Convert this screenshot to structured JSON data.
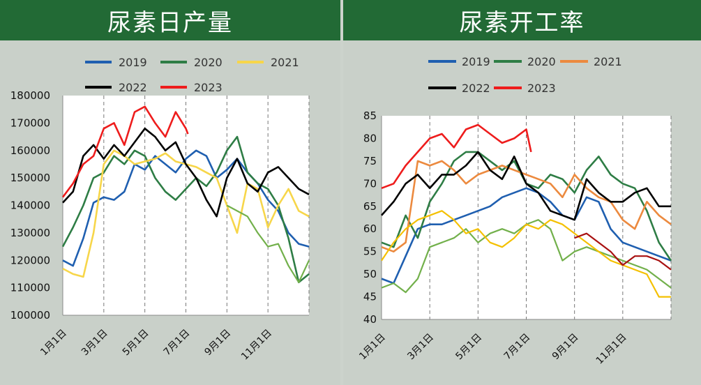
{
  "header": {
    "left_title": "尿素日产量",
    "right_title": "尿素开工率"
  },
  "colors": {
    "header_bg": "#226a35",
    "s2019": "#1f5fb0",
    "s2020": "#2e7d45",
    "s2021_left": "#f7d64a",
    "s2021_right": "#ec8a3f",
    "s2022": "#000000",
    "s2023": "#ee1c1c",
    "extra_green": "#72b04b",
    "extra_yellow": "#f4c000",
    "extra_darkred": "#a81010"
  },
  "chart_data": [
    {
      "type": "line",
      "title": "尿素日产量",
      "x_ticks": [
        "1月1日",
        "3月1日",
        "5月1日",
        "7月1日",
        "9月1日",
        "11月1日"
      ],
      "ylim": [
        100000,
        180000
      ],
      "y_ticks": [
        "100000",
        "110000",
        "120000",
        "130000",
        "140000",
        "150000",
        "160000",
        "170000",
        "180000"
      ],
      "legend": [
        "2019",
        "2020",
        "2021",
        "2022",
        "2023"
      ],
      "legend_position": "top",
      "vertical_gridlines": "dashed at each tick",
      "series": [
        {
          "name": "2019",
          "color": "#1f5fb0",
          "x": [
            0,
            0.25,
            0.5,
            0.75,
            1,
            1.25,
            1.5,
            1.75,
            2,
            2.25,
            2.5,
            2.75,
            3,
            3.25,
            3.5,
            3.75,
            4,
            4.25,
            4.5,
            4.75,
            5,
            5.25,
            5.5,
            5.75,
            6
          ],
          "values": [
            120000,
            118000,
            128000,
            141000,
            143000,
            142000,
            145000,
            155000,
            153000,
            158000,
            155000,
            152000,
            157000,
            160000,
            158000,
            150000,
            153000,
            157000,
            152000,
            148000,
            142000,
            138000,
            130000,
            126000,
            125000
          ]
        },
        {
          "name": "2020",
          "color": "#2e7d45",
          "x": [
            0,
            0.25,
            0.5,
            0.75,
            1,
            1.25,
            1.5,
            1.75,
            2,
            2.25,
            2.5,
            2.75,
            3,
            3.25,
            3.5,
            3.75,
            4,
            4.25,
            4.5,
            4.75,
            5,
            5.25,
            5.5,
            5.75,
            6
          ],
          "values": [
            125000,
            132000,
            140000,
            150000,
            152000,
            158000,
            155000,
            160000,
            158000,
            150000,
            145000,
            142000,
            146000,
            150000,
            147000,
            152000,
            160000,
            165000,
            152000,
            148000,
            146000,
            140000,
            128000,
            112000,
            115000
          ]
        },
        {
          "name": "2021",
          "color": "#f7d64a",
          "x": [
            0,
            0.25,
            0.5,
            0.75,
            1,
            1.25,
            1.5,
            1.75,
            2,
            2.25,
            2.5,
            2.75,
            3,
            3.25,
            3.5,
            3.75,
            4,
            4.25,
            4.5,
            4.75,
            5,
            5.25,
            5.5,
            5.75,
            6
          ],
          "values": [
            117000,
            115000,
            114000,
            130000,
            155000,
            160000,
            158000,
            155000,
            156000,
            157000,
            159000,
            156000,
            155000,
            154000,
            152000,
            150000,
            140000,
            130000,
            148000,
            146000,
            132000,
            140000,
            146000,
            138000,
            136000
          ]
        },
        {
          "name": "2022",
          "color": "#000000",
          "x": [
            0,
            0.25,
            0.5,
            0.75,
            1,
            1.25,
            1.5,
            1.75,
            2,
            2.25,
            2.5,
            2.75,
            3,
            3.25,
            3.5,
            3.75,
            4,
            4.25,
            4.5,
            4.75,
            5,
            5.25,
            5.5,
            5.75,
            6
          ],
          "values": [
            141000,
            145000,
            158000,
            162000,
            157000,
            162000,
            158000,
            163000,
            168000,
            165000,
            160000,
            163000,
            155000,
            150000,
            142000,
            136000,
            150000,
            157000,
            148000,
            145000,
            152000,
            154000,
            150000,
            146000,
            144000
          ]
        },
        {
          "name": "2023",
          "color": "#ee1c1c",
          "x": [
            0,
            0.25,
            0.5,
            0.75,
            1,
            1.25,
            1.5,
            1.75,
            2,
            2.25,
            2.5,
            2.75,
            3,
            3.05
          ],
          "values": [
            143000,
            148000,
            155000,
            158000,
            168000,
            170000,
            162000,
            174000,
            176000,
            170000,
            165000,
            174000,
            168000,
            166000
          ]
        },
        {
          "color": "#72b04b",
          "x": [
            4,
            4.25,
            4.5,
            4.75,
            5,
            5.25,
            5.5,
            5.75,
            6
          ],
          "values": [
            140000,
            138000,
            136000,
            130000,
            125000,
            126000,
            118000,
            112000,
            120000
          ]
        }
      ]
    },
    {
      "type": "line",
      "title": "尿素开工率",
      "x_ticks": [
        "1月1日",
        "3月1日",
        "5月1日",
        "7月1日",
        "9月1日",
        "11月1日"
      ],
      "ylim": [
        40,
        85
      ],
      "y_ticks": [
        "40",
        "45",
        "50",
        "55",
        "60",
        "65",
        "70",
        "75",
        "80",
        "85"
      ],
      "legend": [
        "2019",
        "2020",
        "2021",
        "2022",
        "2023"
      ],
      "legend_position": "top",
      "vertical_gridlines": "dashed at each tick",
      "series": [
        {
          "name": "2019",
          "color": "#1f5fb0",
          "x": [
            0,
            0.25,
            0.5,
            0.75,
            1,
            1.25,
            1.5,
            1.75,
            2,
            2.25,
            2.5,
            2.75,
            3,
            3.25,
            3.5,
            3.75,
            4,
            4.25,
            4.5,
            4.75,
            5,
            5.25,
            5.5,
            5.75,
            6
          ],
          "values": [
            49,
            48,
            54,
            60,
            61,
            61,
            62,
            63,
            64,
            65,
            67,
            68,
            69,
            68,
            66,
            63,
            62,
            67,
            66,
            60,
            57,
            56,
            55,
            54,
            53
          ]
        },
        {
          "name": "2020",
          "color": "#2e7d45",
          "x": [
            0,
            0.25,
            0.5,
            0.75,
            1,
            1.25,
            1.5,
            1.75,
            2,
            2.25,
            2.5,
            2.75,
            3,
            3.25,
            3.5,
            3.75,
            4,
            4.25,
            4.5,
            4.75,
            5,
            5.25,
            5.5,
            5.75,
            6
          ],
          "values": [
            57,
            56,
            63,
            58,
            66,
            70,
            75,
            77,
            77,
            75,
            73,
            75,
            70,
            69,
            72,
            71,
            68,
            73,
            76,
            72,
            70,
            69,
            64,
            57,
            53
          ]
        },
        {
          "name": "2021",
          "color": "#ec8a3f",
          "x": [
            0,
            0.25,
            0.5,
            0.75,
            1,
            1.25,
            1.5,
            1.75,
            2,
            2.25,
            2.5,
            2.75,
            3,
            3.25,
            3.5,
            3.75,
            4,
            4.25,
            4.5,
            4.75,
            5,
            5.25,
            5.5,
            5.75,
            6
          ],
          "values": [
            56,
            55,
            57,
            75,
            74,
            75,
            73,
            70,
            72,
            73,
            74,
            73,
            72,
            71,
            70,
            67,
            72,
            69,
            67,
            66,
            62,
            60,
            66,
            63,
            61
          ]
        },
        {
          "name": "2022",
          "color": "#000000",
          "x": [
            0,
            0.25,
            0.5,
            0.75,
            1,
            1.25,
            1.5,
            1.75,
            2,
            2.25,
            2.5,
            2.75,
            3,
            3.25,
            3.5,
            3.75,
            4,
            4.25,
            4.5,
            4.75,
            5,
            5.25,
            5.5,
            5.75,
            6
          ],
          "values": [
            63,
            66,
            70,
            72,
            69,
            72,
            72,
            74,
            77,
            73,
            71,
            76,
            70,
            68,
            64,
            63,
            62,
            71,
            68,
            66,
            66,
            68,
            69,
            65,
            65
          ]
        },
        {
          "name": "2023",
          "color": "#ee1c1c",
          "x": [
            0,
            0.25,
            0.5,
            0.75,
            1,
            1.25,
            1.5,
            1.75,
            2,
            2.25,
            2.5,
            2.75,
            3,
            3.1
          ],
          "values": [
            69,
            70,
            74,
            77,
            80,
            81,
            78,
            82,
            83,
            81,
            79,
            80,
            82,
            77
          ]
        },
        {
          "color": "#72b04b",
          "x": [
            0,
            0.25,
            0.5,
            0.75,
            1,
            1.25,
            1.5,
            1.75,
            2,
            2.25,
            2.5,
            2.75,
            3,
            3.25,
            3.5,
            3.75,
            4,
            4.25,
            4.5,
            4.75,
            5,
            5.25,
            5.5,
            5.75,
            6
          ],
          "values": [
            47,
            48,
            46,
            49,
            56,
            57,
            58,
            60,
            57,
            59,
            60,
            59,
            61,
            62,
            60,
            53,
            55,
            56,
            55,
            54,
            53,
            52,
            51,
            49,
            47
          ]
        },
        {
          "color": "#f4c000",
          "x": [
            0,
            0.25,
            0.5,
            0.75,
            1,
            1.25,
            1.5,
            1.75,
            2,
            2.25,
            2.5,
            2.75,
            3,
            3.25,
            3.5,
            3.75,
            4,
            4.25,
            4.5,
            4.75,
            5,
            5.25,
            5.5,
            5.75,
            6
          ],
          "values": [
            53,
            57,
            60,
            62,
            63,
            64,
            62,
            59,
            60,
            57,
            56,
            58,
            61,
            60,
            62,
            61,
            59,
            57,
            55,
            53,
            52,
            51,
            50,
            45,
            45
          ]
        },
        {
          "color": "#a81010",
          "x": [
            4,
            4.25,
            4.5,
            4.75,
            5,
            5.25,
            5.5,
            5.75,
            6
          ],
          "values": [
            58,
            59,
            57,
            55,
            52,
            54,
            54,
            53,
            51
          ]
        }
      ]
    }
  ]
}
